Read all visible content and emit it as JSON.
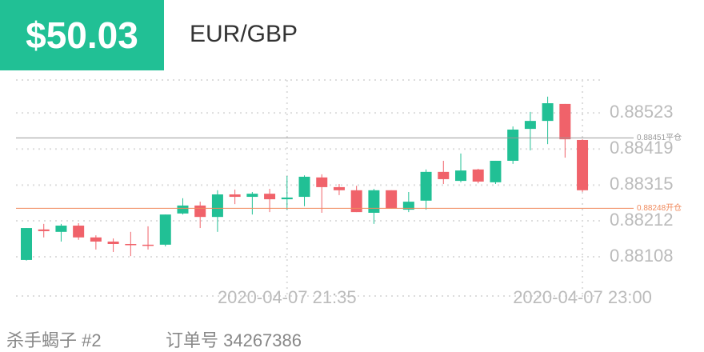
{
  "header": {
    "price": "$50.03",
    "symbol": "EUR/GBP"
  },
  "chart_data": {
    "type": "candlestick",
    "categories": [
      null,
      null,
      null,
      null,
      null,
      null,
      null,
      null,
      null,
      null,
      null,
      null,
      null,
      null,
      null,
      "2020-04-07 21:35",
      null,
      null,
      null,
      null,
      null,
      null,
      null,
      null,
      null,
      null,
      null,
      null,
      null,
      null,
      null,
      null,
      "2020-04-07 23:00"
    ],
    "open": [
      0.88099,
      0.88187,
      0.8818,
      0.88198,
      0.88164,
      0.88152,
      0.88145,
      0.88143,
      0.88143,
      0.88233,
      0.88256,
      0.88223,
      0.88288,
      0.88281,
      0.8829,
      0.88274,
      0.88281,
      0.88337,
      0.88309,
      0.883,
      0.88235,
      0.883,
      0.88244,
      0.8827,
      0.88353,
      0.88327,
      0.8836,
      0.88323,
      0.88385,
      0.88477,
      0.885,
      0.88549,
      0.88445
    ],
    "high": [
      0.88191,
      0.88203,
      0.88203,
      0.88205,
      0.8817,
      0.88161,
      0.8818,
      0.88196,
      0.8823,
      0.88277,
      0.88267,
      0.883,
      0.88302,
      0.88295,
      0.88304,
      0.88341,
      0.88343,
      0.88346,
      0.88318,
      0.88313,
      0.88304,
      0.883,
      0.88295,
      0.8836,
      0.88385,
      0.88406,
      0.88362,
      0.88385,
      0.88484,
      0.88526,
      0.8857,
      0.88549,
      0.88447
    ],
    "low": [
      0.88097,
      0.88164,
      0.88152,
      0.88157,
      0.88129,
      0.88122,
      0.8811,
      0.88129,
      0.88138,
      0.8823,
      0.88191,
      0.8818,
      0.8826,
      0.8823,
      0.88237,
      0.88244,
      0.88254,
      0.88235,
      0.88286,
      0.88237,
      0.88203,
      0.88247,
      0.88237,
      0.88244,
      0.88318,
      0.88323,
      0.8832,
      0.88318,
      0.88376,
      0.88415,
      0.88433,
      0.88394,
      0.88295
    ],
    "close": [
      0.88191,
      0.88182,
      0.88198,
      0.88164,
      0.88152,
      0.88145,
      0.88143,
      0.8814,
      0.8823,
      0.88256,
      0.88223,
      0.88288,
      0.88281,
      0.8829,
      0.88274,
      0.88279,
      0.88339,
      0.88309,
      0.883,
      0.88237,
      0.883,
      0.88247,
      0.88267,
      0.88353,
      0.88332,
      0.88357,
      0.88325,
      0.88385,
      0.88475,
      0.885,
      0.88551,
      0.88447,
      0.883
    ],
    "up_color": "#21c095",
    "down_color": "#f0626a",
    "ylim": [
      0.87995,
      0.88618
    ],
    "yticks": [
      0.88108,
      0.88212,
      0.88315,
      0.88419,
      0.88523
    ],
    "grid": true,
    "ref_lines": [
      {
        "value": 0.88451,
        "label": "0.88451平仓",
        "color": "#999999"
      },
      {
        "value": 0.88248,
        "label": "0.88248开仓",
        "color": "#f08a5d"
      }
    ]
  },
  "footer": {
    "account": "杀手蝎子 #2",
    "order": "订单号 34267386"
  }
}
